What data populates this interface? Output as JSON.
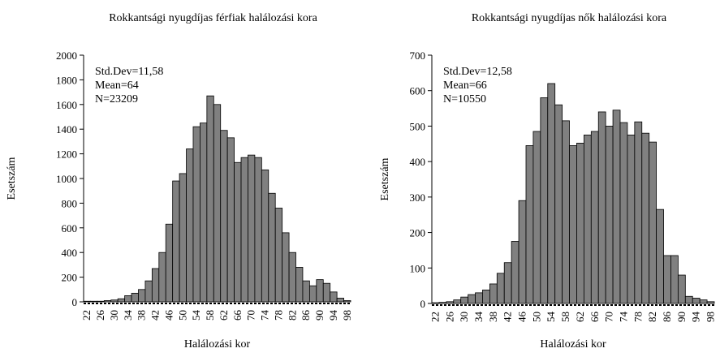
{
  "chart_data": [
    {
      "type": "bar",
      "title": "Rokkantsági nyugdíjas férfiak halálozási kora",
      "xlabel": "Halálozási kor",
      "ylabel": "Esetszám",
      "annotations": [
        "Std.Dev=11,58",
        "Mean=64",
        "N=23209"
      ],
      "categories": [
        "22",
        null,
        "26",
        null,
        "30",
        null,
        "34",
        null,
        "38",
        null,
        "42",
        null,
        "46",
        null,
        "50",
        null,
        "54",
        null,
        "58",
        null,
        "62",
        null,
        "66",
        null,
        "70",
        null,
        "74",
        null,
        "78",
        null,
        "82",
        null,
        "86",
        null,
        "90",
        null,
        "94",
        null,
        "98"
      ],
      "values": [
        5,
        5,
        5,
        10,
        15,
        25,
        50,
        70,
        100,
        170,
        270,
        400,
        630,
        980,
        1040,
        1240,
        1420,
        1450,
        1670,
        1600,
        1390,
        1330,
        1130,
        1170,
        1190,
        1170,
        1070,
        880,
        760,
        560,
        400,
        280,
        170,
        130,
        180,
        150,
        80,
        30,
        10
      ],
      "color": "#808080",
      "ylim": [
        0,
        2000
      ],
      "yticks": [
        0,
        200,
        400,
        600,
        800,
        1000,
        1200,
        1400,
        1600,
        1800,
        2000
      ]
    },
    {
      "type": "bar",
      "title": "Rokkantsági nyugdíjas nők halálozási kora",
      "xlabel": "Halálozási kor",
      "ylabel": "Esetszám",
      "annotations": [
        "Std.Dev=12,58",
        "Mean=66",
        "N=10550"
      ],
      "categories": [
        "22",
        null,
        "26",
        null,
        "30",
        null,
        "34",
        null,
        "38",
        null,
        "42",
        null,
        "46",
        null,
        "50",
        null,
        "54",
        null,
        "58",
        null,
        "62",
        null,
        "66",
        null,
        "70",
        null,
        "74",
        null,
        "78",
        null,
        "82",
        null,
        "86",
        null,
        "90",
        null,
        "94",
        null,
        "98"
      ],
      "values": [
        2,
        3,
        5,
        10,
        18,
        25,
        30,
        38,
        55,
        85,
        115,
        175,
        290,
        445,
        485,
        580,
        620,
        560,
        515,
        445,
        452,
        475,
        485,
        540,
        500,
        545,
        510,
        475,
        512,
        480,
        455,
        265,
        135,
        135,
        80,
        20,
        15,
        10,
        5
      ],
      "color": "#808080",
      "ylim": [
        0,
        700
      ],
      "yticks": [
        0,
        100,
        200,
        300,
        400,
        500,
        600,
        700
      ]
    }
  ]
}
